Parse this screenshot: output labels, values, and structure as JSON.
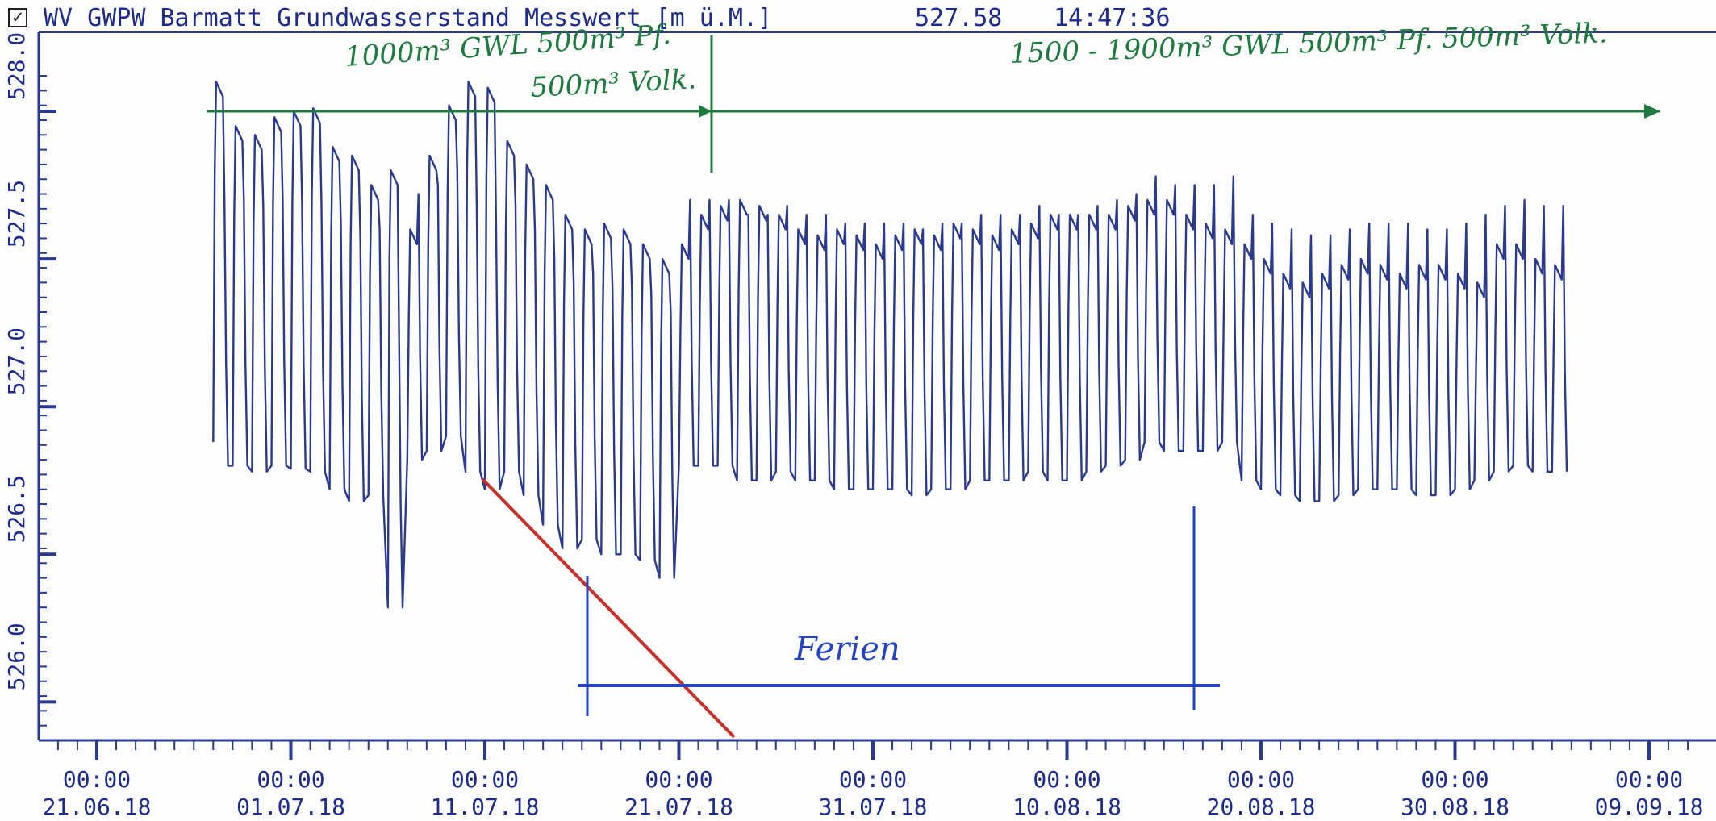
{
  "header": {
    "checkbox_mark": "✓",
    "title": "WV GWPW Barmatt Grundwasserstand Messwert [m ü.M.]",
    "current_value": "527.58",
    "current_time": "14:47:36"
  },
  "annotations": {
    "green_left_line1": "1000m³ GWL 500m³ Pf.",
    "green_left_line2": "500m³ Volk.",
    "green_right": "1500 - 1900m³ GWL  500m³ Pf.  500m³ Volk.",
    "holiday_label": "Ferien"
  },
  "colors": {
    "series": "#2b3a8f",
    "axis": "#2b3a8f",
    "annotation_green": "#1f7a3f",
    "annotation_blue": "#2444c4",
    "annotation_red": "#c8302b"
  },
  "chart_data": {
    "type": "line",
    "title": "WV GWPW Barmatt Grundwasserstand Messwert [m ü.M.]",
    "xlabel": "",
    "ylabel": "",
    "ylim": [
      525.92,
      528.2
    ],
    "xlim": [
      "2018-06-21",
      "2018-09-09"
    ],
    "x_ticks": [
      {
        "time": "00:00",
        "date": "21.06.18"
      },
      {
        "time": "00:00",
        "date": "01.07.18"
      },
      {
        "time": "00:00",
        "date": "11.07.18"
      },
      {
        "time": "00:00",
        "date": "21.07.18"
      },
      {
        "time": "00:00",
        "date": "31.07.18"
      },
      {
        "time": "00:00",
        "date": "10.08.18"
      },
      {
        "time": "00:00",
        "date": "20.08.18"
      },
      {
        "time": "00:00",
        "date": "30.08.18"
      },
      {
        "time": "00:00",
        "date": "09.09.18"
      }
    ],
    "y_ticks": [
      "526.0",
      "526.5",
      "527.0",
      "527.5",
      "528.0"
    ],
    "y_tick_values": [
      526.0,
      526.5,
      527.0,
      527.5,
      528.0
    ],
    "grid": false,
    "series": [
      {
        "daily_max_low": [
          [
            "2018-06-27",
            528.1,
            526.8
          ],
          [
            "2018-06-28",
            527.95,
            526.8
          ],
          [
            "2018-06-29",
            527.92,
            526.78
          ],
          [
            "2018-06-30",
            527.98,
            526.8
          ],
          [
            "2018-07-01",
            528.0,
            526.79
          ],
          [
            "2018-07-02",
            528.01,
            526.78
          ],
          [
            "2018-07-03",
            527.88,
            526.72
          ],
          [
            "2018-07-04",
            527.85,
            526.68
          ],
          [
            "2018-07-05",
            527.75,
            526.7
          ],
          [
            "2018-07-06",
            527.8,
            526.32
          ],
          [
            "2018-07-07",
            527.6,
            526.82
          ],
          [
            "2018-07-08",
            527.85,
            526.85
          ],
          [
            "2018-07-09",
            528.02,
            526.9
          ],
          [
            "2018-07-10",
            528.1,
            526.78
          ],
          [
            "2018-07-11",
            528.08,
            526.72
          ],
          [
            "2018-07-12",
            527.9,
            526.78
          ],
          [
            "2018-07-13",
            527.82,
            526.7
          ],
          [
            "2018-07-14",
            527.75,
            526.6
          ],
          [
            "2018-07-15",
            527.65,
            526.52
          ],
          [
            "2018-07-16",
            527.6,
            526.55
          ],
          [
            "2018-07-17",
            527.62,
            526.5
          ],
          [
            "2018-07-18",
            527.6,
            526.5
          ],
          [
            "2018-07-19",
            527.55,
            526.48
          ],
          [
            "2018-07-20",
            527.5,
            526.42
          ],
          [
            "2018-07-21",
            527.55,
            526.8
          ],
          [
            "2018-07-22",
            527.65,
            526.8
          ],
          [
            "2018-07-23",
            527.68,
            526.8
          ],
          [
            "2018-07-24",
            527.7,
            526.75
          ],
          [
            "2018-07-25",
            527.68,
            526.75
          ],
          [
            "2018-07-26",
            527.65,
            526.78
          ],
          [
            "2018-07-27",
            527.6,
            526.75
          ],
          [
            "2018-07-28",
            527.58,
            526.75
          ],
          [
            "2018-07-29",
            527.6,
            526.72
          ],
          [
            "2018-07-30",
            527.58,
            526.72
          ],
          [
            "2018-07-31",
            527.55,
            526.72
          ],
          [
            "2018-08-01",
            527.58,
            526.72
          ],
          [
            "2018-08-02",
            527.6,
            526.7
          ],
          [
            "2018-08-03",
            527.58,
            526.72
          ],
          [
            "2018-08-04",
            527.62,
            526.72
          ],
          [
            "2018-08-05",
            527.6,
            526.75
          ],
          [
            "2018-08-06",
            527.58,
            526.75
          ],
          [
            "2018-08-07",
            527.6,
            526.75
          ],
          [
            "2018-08-08",
            527.62,
            526.78
          ],
          [
            "2018-08-09",
            527.65,
            526.75
          ],
          [
            "2018-08-10",
            527.65,
            526.75
          ],
          [
            "2018-08-11",
            527.65,
            526.78
          ],
          [
            "2018-08-12",
            527.65,
            526.8
          ],
          [
            "2018-08-13",
            527.68,
            526.82
          ],
          [
            "2018-08-14",
            527.7,
            526.88
          ],
          [
            "2018-08-15",
            527.7,
            526.85
          ],
          [
            "2018-08-16",
            527.65,
            526.85
          ],
          [
            "2018-08-17",
            527.62,
            526.85
          ],
          [
            "2018-08-18",
            527.6,
            526.88
          ],
          [
            "2018-08-19",
            527.55,
            526.75
          ],
          [
            "2018-08-20",
            527.5,
            526.72
          ],
          [
            "2018-08-21",
            527.45,
            526.7
          ],
          [
            "2018-08-22",
            527.42,
            526.68
          ],
          [
            "2018-08-23",
            527.45,
            526.68
          ],
          [
            "2018-08-24",
            527.48,
            526.7
          ],
          [
            "2018-08-25",
            527.5,
            526.72
          ],
          [
            "2018-08-26",
            527.48,
            526.72
          ],
          [
            "2018-08-27",
            527.45,
            526.72
          ],
          [
            "2018-08-28",
            527.48,
            526.7
          ],
          [
            "2018-08-29",
            527.48,
            526.7
          ],
          [
            "2018-08-30",
            527.45,
            526.72
          ],
          [
            "2018-08-31",
            527.42,
            526.75
          ],
          [
            "2018-09-01",
            527.55,
            526.78
          ],
          [
            "2018-09-02",
            527.55,
            526.8
          ],
          [
            "2018-09-03",
            527.5,
            526.78
          ],
          [
            "2018-09-04",
            527.48,
            526.78
          ]
        ]
      }
    ]
  }
}
